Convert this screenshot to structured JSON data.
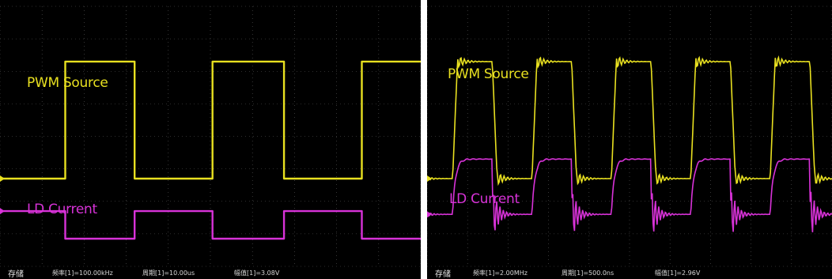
{
  "colors": {
    "background": "#000000",
    "grid": "#5a5a5a",
    "ch1": "#e8e020",
    "ch2": "#d832d8",
    "status_text": "#d8d8d8"
  },
  "chart_data": [
    {
      "type": "line",
      "title": "",
      "xlabel": "",
      "ylabel": "",
      "grid": true,
      "divisions": {
        "x": 10,
        "y": 8
      },
      "series": [
        {
          "name": "PWM Source",
          "color": "#e8e020",
          "x": [
            0,
            1.55,
            1.55,
            3.2,
            3.2,
            5.05,
            5.05,
            6.75,
            6.75,
            8.6,
            8.6,
            10
          ],
          "y": [
            2.7,
            2.7,
            6.3,
            6.3,
            2.7,
            2.7,
            6.3,
            6.3,
            2.7,
            2.7,
            6.3,
            6.3
          ]
        },
        {
          "name": "LD Current",
          "color": "#d832d8",
          "x": [
            0,
            1.55,
            1.55,
            3.2,
            3.2,
            5.05,
            5.05,
            6.75,
            6.75,
            8.6,
            8.6,
            10
          ],
          "y": [
            1.7,
            1.7,
            0.85,
            0.85,
            1.7,
            1.7,
            0.85,
            0.85,
            1.7,
            1.7,
            0.85,
            0.85
          ]
        }
      ],
      "labels": [
        {
          "text": "PWM Source",
          "color": "#e8e020"
        },
        {
          "text": "LD Current",
          "color": "#d832d8"
        }
      ],
      "status_bar": {
        "store": "存储",
        "frequency": "频率[1]=100.00kHz",
        "period": "周期[1]=10.00us",
        "amplitude": "幅值[1]=3.08V"
      }
    },
    {
      "type": "line",
      "title": "",
      "xlabel": "",
      "ylabel": "",
      "grid": true,
      "divisions": {
        "x": 10,
        "y": 8
      },
      "series": [
        {
          "name": "PWM Source",
          "color": "#e8e020",
          "waveform": "square_with_ringing",
          "periods_visible": 5,
          "high": 6.3,
          "low": 2.7
        },
        {
          "name": "LD Current",
          "color": "#d832d8",
          "waveform": "rounded_square_with_ringing",
          "periods_visible": 5,
          "high": 3.3,
          "low": 1.6
        }
      ],
      "labels": [
        {
          "text": "PWM Source",
          "color": "#e8e020"
        },
        {
          "text": "LD Current",
          "color": "#d832d8"
        }
      ],
      "status_bar": {
        "store": "存储",
        "frequency": "频率[1]=2.00MHz",
        "period": "周期[1]=500.0ns",
        "amplitude": "幅值[1]=2.96V"
      }
    }
  ]
}
